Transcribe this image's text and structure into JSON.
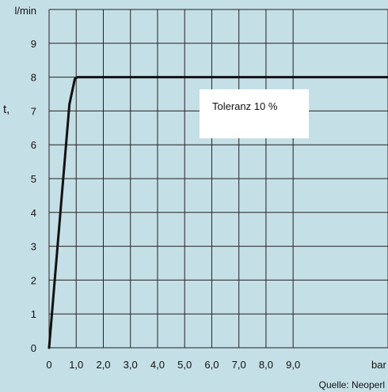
{
  "chart_data": {
    "type": "line",
    "title": "",
    "xlabel": "",
    "ylabel": "",
    "x_unit": "bar",
    "y_unit": "l/min",
    "xlim": [
      0,
      12.5
    ],
    "ylim": [
      0,
      10
    ],
    "x_ticks": [
      {
        "value": 0,
        "label": "0"
      },
      {
        "value": 1,
        "label": "1,0"
      },
      {
        "value": 2,
        "label": "2,0"
      },
      {
        "value": 3,
        "label": "3,0"
      },
      {
        "value": 4,
        "label": "4,0"
      },
      {
        "value": 5,
        "label": "5,0"
      },
      {
        "value": 6,
        "label": "6,0"
      },
      {
        "value": 7,
        "label": "7,0"
      },
      {
        "value": 8,
        "label": "8,0"
      },
      {
        "value": 9,
        "label": "9,0"
      }
    ],
    "y_ticks": [
      {
        "value": 0,
        "label": "0"
      },
      {
        "value": 1,
        "label": "1"
      },
      {
        "value": 2,
        "label": "2"
      },
      {
        "value": 3,
        "label": "3"
      },
      {
        "value": 4,
        "label": "4"
      },
      {
        "value": 5,
        "label": "5"
      },
      {
        "value": 6,
        "label": "6"
      },
      {
        "value": 7,
        "label": "7"
      },
      {
        "value": 8,
        "label": "8"
      },
      {
        "value": 9,
        "label": "9"
      }
    ],
    "grid": true,
    "series": [
      {
        "points": [
          {
            "x": 0,
            "y": 0
          },
          {
            "x": 0.75,
            "y": 7.2
          },
          {
            "x": 0.95,
            "y": 7.95
          },
          {
            "x": 1.05,
            "y": 8
          },
          {
            "x": 12.5,
            "y": 8
          }
        ]
      }
    ],
    "annotations": [
      {
        "text": "Toleranz 10 %"
      }
    ],
    "source": "Quelle: Neoperl",
    "edge_text": "t,"
  },
  "colors": {
    "background": "#c5dfe6",
    "plot_background": "#c5dfe6",
    "grid": "#222222",
    "line": "#111111",
    "annotation_box": "#ffffff"
  }
}
